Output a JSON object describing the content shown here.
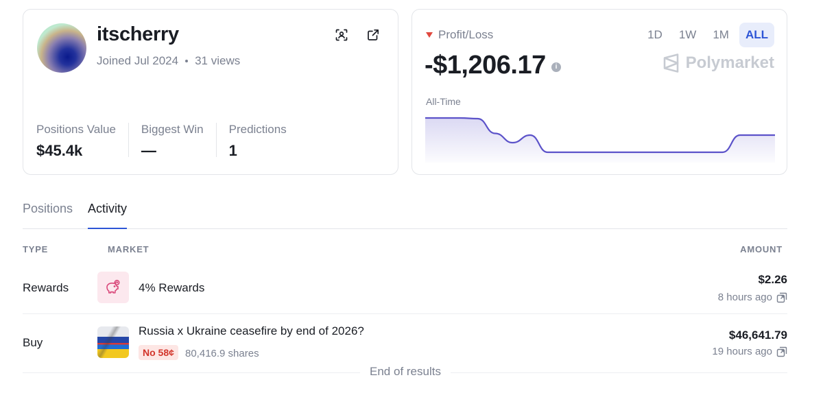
{
  "profile": {
    "username": "itscherry",
    "joined": "Joined Jul 2024",
    "views": "31 views",
    "stats": [
      {
        "label": "Positions Value",
        "value": "$45.4k"
      },
      {
        "label": "Biggest Win",
        "value": "—"
      },
      {
        "label": "Predictions",
        "value": "1"
      }
    ]
  },
  "pnl": {
    "label": "Profit/Loss",
    "value": "-$1,206.17",
    "period_label": "All-Time",
    "ranges": [
      "1D",
      "1W",
      "1M",
      "ALL"
    ],
    "active_range": "ALL",
    "brand": "Polymarket",
    "colors": {
      "line": "#5b52c9",
      "down": "#e0483e"
    }
  },
  "chart_data": {
    "type": "area",
    "x": [
      0,
      1,
      2,
      3,
      4,
      5,
      6,
      7,
      8,
      9,
      10,
      11,
      12,
      13,
      14,
      15,
      16,
      17,
      18,
      19,
      20
    ],
    "values": [
      1.0,
      1.0,
      1.0,
      0.98,
      0.55,
      0.28,
      0.5,
      0.0,
      0.0,
      0.0,
      0.0,
      0.0,
      0.0,
      0.0,
      0.0,
      0.0,
      0.0,
      0.0,
      0.5,
      0.5,
      0.5
    ],
    "title": "",
    "xlabel": "",
    "ylabel": "",
    "grid": false
  },
  "tabs": [
    "Positions",
    "Activity"
  ],
  "active_tab": "Activity",
  "table": {
    "headers": {
      "type": "TYPE",
      "market": "MARKET",
      "amount": "AMOUNT"
    },
    "rows": [
      {
        "type": "Rewards",
        "market": "4% Rewards",
        "amount": "$2.26",
        "time": "8 hours ago",
        "icon": "piggy-bank-icon"
      },
      {
        "type": "Buy",
        "market": "Russia x Ukraine ceasefire by end of 2026?",
        "outcome": "No 58¢",
        "shares": "80,416.9 shares",
        "amount": "$46,641.79",
        "time": "19 hours ago",
        "icon": "russia-ukraine-flag"
      }
    ]
  },
  "footer": {
    "end_text": "End of results"
  }
}
